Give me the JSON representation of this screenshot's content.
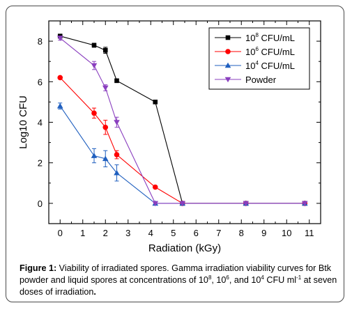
{
  "chart_data": {
    "type": "line",
    "xlabel": "Radiation (kGy)",
    "ylabel": "Log10 CFU",
    "xlim": [
      -0.5,
      11.5
    ],
    "ylim": [
      -1,
      9
    ],
    "xticks": [
      0,
      1,
      2,
      3,
      4,
      5,
      6,
      7,
      8,
      9,
      10,
      11
    ],
    "yticks": [
      0,
      2,
      4,
      6,
      8
    ],
    "grid": false,
    "legend_position": "top-right",
    "series": [
      {
        "name": "10^8 CFU/mL",
        "legend_base": "10",
        "legend_exp": "8",
        "legend_unit": "CFU/mL",
        "color": "#000000",
        "marker": "square",
        "x": [
          0,
          1.5,
          2.0,
          2.5,
          4.2,
          5.4,
          8.2,
          10.8
        ],
        "y": [
          8.25,
          7.8,
          7.55,
          6.05,
          5.0,
          0,
          0,
          0
        ],
        "err": [
          0.1,
          0.1,
          0.15,
          0,
          0,
          0,
          0,
          0
        ]
      },
      {
        "name": "10^6 CFU/mL",
        "legend_base": "10",
        "legend_exp": "6",
        "legend_unit": "CFU/mL",
        "color": "#ff0000",
        "marker": "circle",
        "x": [
          0,
          1.5,
          2.0,
          2.5,
          4.2,
          5.4,
          8.2,
          10.8
        ],
        "y": [
          6.2,
          4.45,
          3.75,
          2.4,
          0.8,
          0,
          0,
          0
        ],
        "err": [
          0,
          0.25,
          0.35,
          0.2,
          0,
          0,
          0,
          0
        ]
      },
      {
        "name": "10^4 CFU/mL",
        "legend_base": "10",
        "legend_exp": "4",
        "legend_unit": "CFU/mL",
        "color": "#1f5fbf",
        "marker": "triangle-up",
        "x": [
          0,
          1.5,
          2.0,
          2.5,
          4.2,
          5.4,
          8.2,
          10.8
        ],
        "y": [
          4.8,
          2.35,
          2.2,
          1.5,
          0,
          0,
          0,
          0
        ],
        "err": [
          0.15,
          0.35,
          0.4,
          0.4,
          0,
          0,
          0,
          0
        ]
      },
      {
        "name": "Powder",
        "legend_base": "",
        "legend_exp": "",
        "legend_unit": "Powder",
        "color": "#8a3fbf",
        "marker": "triangle-down",
        "x": [
          0,
          1.5,
          2.0,
          2.5,
          4.2,
          5.4,
          8.2,
          10.8
        ],
        "y": [
          8.15,
          6.8,
          5.7,
          4.0,
          0,
          0,
          0,
          0
        ],
        "err": [
          0.1,
          0.2,
          0.15,
          0.25,
          0,
          0,
          0,
          0
        ]
      }
    ]
  },
  "caption": {
    "label": "Figure 1:",
    "text1": " Viability of irradiated spores.  Gamma irradiation viability curves for Btk powder and liquid spores at concentrations of 10",
    "sup1": "8",
    "text2": ", 10",
    "sup2": "6",
    "text3": ", and 10",
    "sup3": "4",
    "text4": " CFU ml",
    "sup4": "-1",
    "text5": " at seven doses of irradiation",
    "end": "."
  }
}
